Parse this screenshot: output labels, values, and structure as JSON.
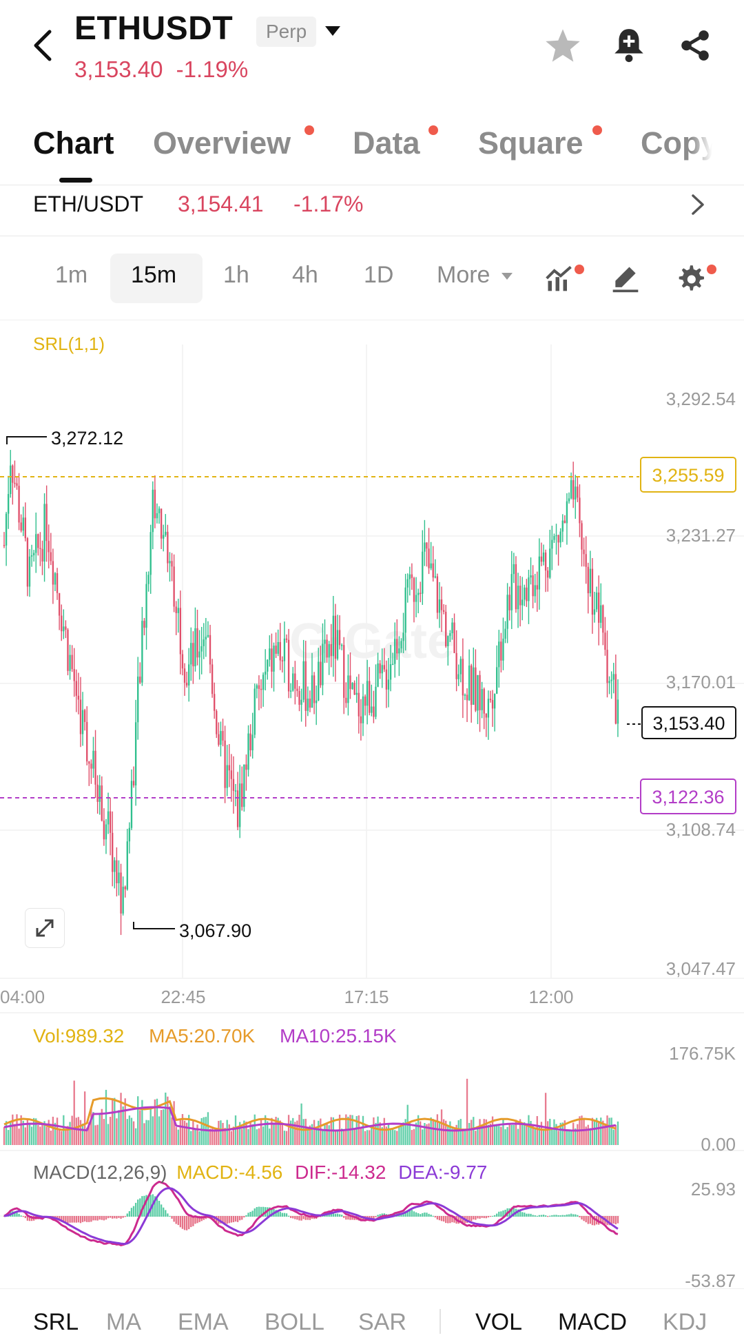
{
  "header": {
    "title": "ETHUSDT",
    "badge": "Perp",
    "price": "3,153.40",
    "change": "-1.19%",
    "icons": [
      "back-arrow-icon",
      "caret-down-icon",
      "star-icon",
      "bell-add-icon",
      "share-icon"
    ]
  },
  "tabs": [
    {
      "label": "Chart",
      "active": true,
      "dot": false
    },
    {
      "label": "Overview",
      "active": false,
      "dot": true
    },
    {
      "label": "Data",
      "active": false,
      "dot": true
    },
    {
      "label": "Square",
      "active": false,
      "dot": true
    },
    {
      "label": "Copy",
      "active": false,
      "dot": false
    }
  ],
  "pair": {
    "name": "ETH/USDT",
    "price": "3,154.41",
    "change": "-1.17%"
  },
  "intervals": {
    "items": [
      "1m",
      "15m",
      "1h",
      "4h",
      "1D"
    ],
    "selected": "15m",
    "more": "More"
  },
  "colors": {
    "up": "#2fbf8d",
    "down": "#e04f6a",
    "accent_yellow": "#e1b312",
    "accent_purple": "#b23cc7",
    "orange": "#e69b2a",
    "magenta": "#cc2a8e"
  },
  "chart": {
    "indicator_label": "SRL(1,1)",
    "y_ticks": [
      "3,292.54",
      "3,231.27",
      "3,170.01",
      "3,108.74",
      "3,047.47"
    ],
    "x_ticks": [
      "04:00",
      "22:45",
      "17:15",
      "12:00"
    ],
    "high_label": "3,272.12",
    "low_label": "3,067.90",
    "srl_upper": "3,255.59",
    "srl_lower": "3,122.36",
    "last_price": "3,153.40"
  },
  "volume": {
    "vol": "Vol:989.32",
    "ma5": "MA5:20.70K",
    "ma10": "MA10:25.15K",
    "ymax": "176.75K",
    "ymin": "0.00"
  },
  "macd": {
    "label": "MACD(12,26,9)",
    "macd": "MACD:-4.56",
    "dif": "DIF:-14.32",
    "dea": "DEA:-9.77",
    "ymax": "25.93",
    "ymin": "-53.87"
  },
  "indicators": {
    "main": [
      "SRL",
      "MA",
      "EMA",
      "BOLL",
      "SAR"
    ],
    "sub": [
      "VOL",
      "MACD",
      "KDJ"
    ],
    "active": [
      "SRL",
      "VOL",
      "MACD"
    ]
  }
}
